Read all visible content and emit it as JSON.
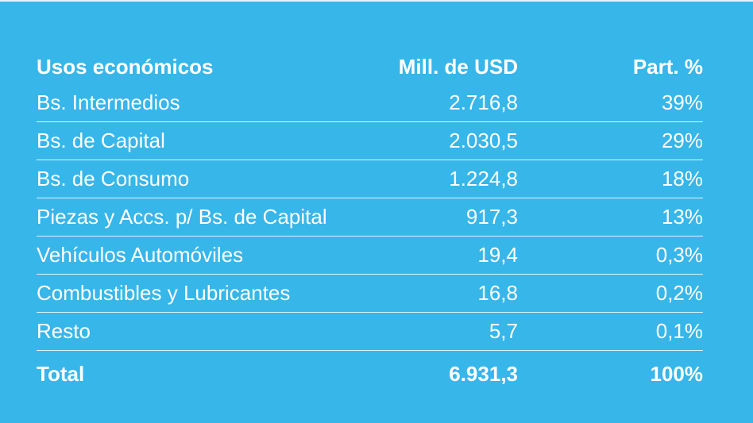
{
  "table": {
    "headers": {
      "label": "Usos económicos",
      "value": "Mill. de USD",
      "share": "Part. %"
    },
    "rows": [
      {
        "label": "Bs. Intermedios",
        "value": "2.716,8",
        "share": "39%"
      },
      {
        "label": "Bs. de Capital",
        "value": "2.030,5",
        "share": "29%"
      },
      {
        "label": "Bs. de Consumo",
        "value": "1.224,8",
        "share": "18%"
      },
      {
        "label": "Piezas y Accs. p/ Bs. de Capital",
        "value": "917,3",
        "share": "13%"
      },
      {
        "label": "Vehículos Automóviles",
        "value": "19,4",
        "share": "0,3%"
      },
      {
        "label": "Combustibles y Lubricantes",
        "value": "16,8",
        "share": "0,2%"
      },
      {
        "label": "Resto",
        "value": "5,7",
        "share": "0,1%"
      }
    ],
    "total": {
      "label": "Total",
      "value": "6.931,3",
      "share": "100%"
    }
  },
  "colors": {
    "background": "#37b6e9",
    "text": "#ffffff"
  }
}
